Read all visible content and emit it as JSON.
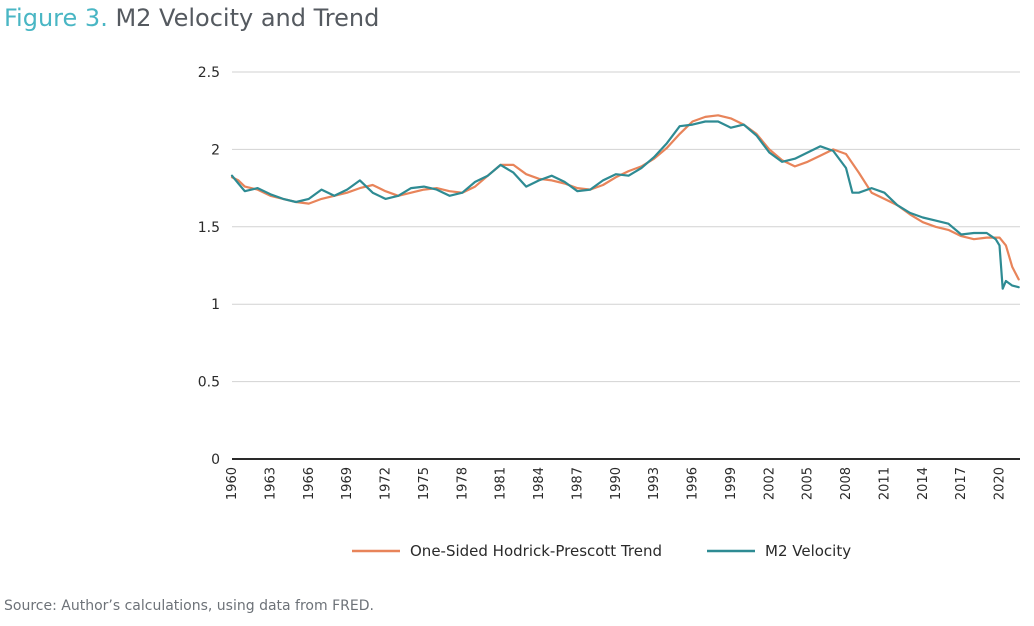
{
  "figure": {
    "label": "Figure 3",
    "title": "M2 Velocity and Trend"
  },
  "source": "Source: Author’s calculations, using data from FRED.",
  "colors": {
    "label": "#49b6c4",
    "trend": "#e8845a",
    "velocity": "#2e8b93",
    "grid": "#d2d2d2",
    "axis": "#2a2a2a",
    "text": "#555a60"
  },
  "chart_data": {
    "type": "line",
    "title": "M2 Velocity and Trend",
    "xlim": [
      1960,
      2021.6
    ],
    "ylim": [
      0,
      2.5
    ],
    "yticks": [
      0,
      0.5,
      1,
      1.5,
      2,
      2.5
    ],
    "ytick_labels": [
      "0",
      "0.5",
      "1",
      "1.5",
      "2",
      "2.5"
    ],
    "xticks": [
      1960,
      1963,
      1966,
      1969,
      1972,
      1975,
      1978,
      1981,
      1984,
      1987,
      1990,
      1993,
      1996,
      1999,
      2002,
      2005,
      2008,
      2011,
      2014,
      2017,
      2020
    ],
    "xtick_labels": [
      "1960",
      "1963",
      "1966",
      "1969",
      "1972",
      "1975",
      "1978",
      "1981",
      "1984",
      "1987",
      "1990",
      "1993",
      "1996",
      "1999",
      "2002",
      "2005",
      "2008",
      "2011",
      "2014",
      "2017",
      "2020"
    ],
    "grid": "horizontal",
    "legend_position": "bottom",
    "series": [
      {
        "name": "One-Sided Hodrick-Prescott Trend",
        "color": "#e8845a",
        "x": [
          1960,
          1960.5,
          1961,
          1962,
          1963,
          1964,
          1965,
          1966,
          1967,
          1968,
          1969,
          1970,
          1971,
          1972,
          1973,
          1974,
          1975,
          1976,
          1977,
          1978,
          1979,
          1980,
          1981,
          1982,
          1983,
          1984,
          1985,
          1986,
          1987,
          1988,
          1989,
          1990,
          1991,
          1992,
          1993,
          1994,
          1995,
          1996,
          1997,
          1998,
          1999,
          2000,
          2001,
          2002,
          2003,
          2004,
          2005,
          2006,
          2007,
          2008,
          2009,
          2010,
          2011,
          2012,
          2013,
          2014,
          2015,
          2016,
          2017,
          2018,
          2019,
          2020,
          2020.5,
          2021,
          2021.5
        ],
        "y": [
          1.82,
          1.8,
          1.76,
          1.74,
          1.7,
          1.68,
          1.66,
          1.65,
          1.68,
          1.7,
          1.72,
          1.75,
          1.77,
          1.73,
          1.7,
          1.72,
          1.74,
          1.75,
          1.73,
          1.72,
          1.76,
          1.83,
          1.9,
          1.9,
          1.84,
          1.81,
          1.8,
          1.78,
          1.75,
          1.74,
          1.77,
          1.82,
          1.86,
          1.89,
          1.94,
          2.01,
          2.1,
          2.18,
          2.21,
          2.22,
          2.2,
          2.16,
          2.1,
          2.0,
          1.93,
          1.89,
          1.92,
          1.96,
          2.0,
          1.97,
          1.85,
          1.72,
          1.68,
          1.64,
          1.58,
          1.53,
          1.5,
          1.48,
          1.44,
          1.42,
          1.43,
          1.43,
          1.38,
          1.24,
          1.16
        ]
      },
      {
        "name": "M2 Velocity",
        "color": "#2e8b93",
        "x": [
          1960,
          1960.5,
          1961,
          1962,
          1963,
          1964,
          1965,
          1966,
          1967,
          1968,
          1969,
          1970,
          1971,
          1972,
          1973,
          1974,
          1975,
          1976,
          1977,
          1978,
          1979,
          1980,
          1981,
          1982,
          1983,
          1984,
          1985,
          1986,
          1987,
          1988,
          1989,
          1990,
          1991,
          1992,
          1993,
          1994,
          1995,
          1996,
          1997,
          1998,
          1999,
          2000,
          2001,
          2002,
          2003,
          2004,
          2005,
          2006,
          2007,
          2008,
          2008.5,
          2009,
          2010,
          2011,
          2012,
          2013,
          2014,
          2015,
          2016,
          2017,
          2018,
          2019,
          2019.7,
          2020,
          2020.25,
          2020.5,
          2021,
          2021.5
        ],
        "y": [
          1.83,
          1.78,
          1.73,
          1.75,
          1.71,
          1.68,
          1.66,
          1.68,
          1.74,
          1.7,
          1.74,
          1.8,
          1.72,
          1.68,
          1.7,
          1.75,
          1.76,
          1.74,
          1.7,
          1.72,
          1.79,
          1.83,
          1.9,
          1.85,
          1.76,
          1.8,
          1.83,
          1.79,
          1.73,
          1.74,
          1.8,
          1.84,
          1.83,
          1.88,
          1.95,
          2.04,
          2.15,
          2.16,
          2.18,
          2.18,
          2.14,
          2.16,
          2.09,
          1.98,
          1.92,
          1.94,
          1.98,
          2.02,
          1.99,
          1.88,
          1.72,
          1.72,
          1.75,
          1.72,
          1.64,
          1.59,
          1.56,
          1.54,
          1.52,
          1.45,
          1.46,
          1.46,
          1.42,
          1.38,
          1.1,
          1.15,
          1.12,
          1.11
        ]
      }
    ]
  }
}
